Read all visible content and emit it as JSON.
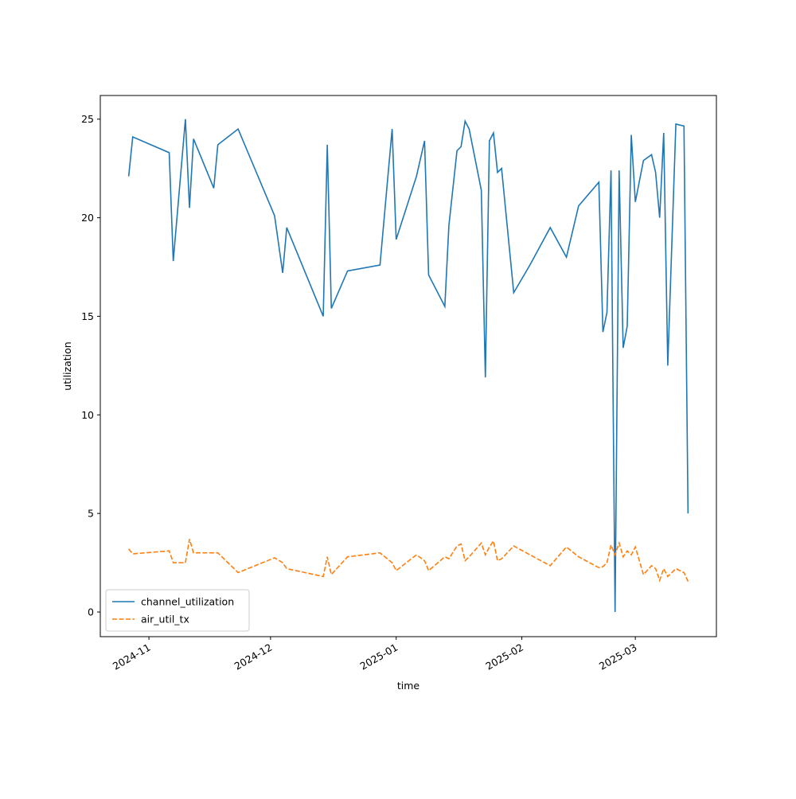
{
  "chart_data": {
    "type": "line",
    "xlabel": "time",
    "ylabel": "utilization",
    "x": [
      "2024-10-27",
      "2024-10-28",
      "2024-11-06",
      "2024-11-07",
      "2024-11-10",
      "2024-11-11",
      "2024-11-12",
      "2024-11-17",
      "2024-11-18",
      "2024-11-23",
      "2024-12-02",
      "2024-12-04",
      "2024-12-05",
      "2024-12-14",
      "2024-12-15",
      "2024-12-16",
      "2024-12-20",
      "2024-12-28",
      "2024-12-31",
      "2025-01-01",
      "2025-01-06",
      "2025-01-08",
      "2025-01-09",
      "2025-01-13",
      "2025-01-14",
      "2025-01-16",
      "2025-01-17",
      "2025-01-18",
      "2025-01-19",
      "2025-01-22",
      "2025-01-23",
      "2025-01-24",
      "2025-01-25",
      "2025-01-26",
      "2025-01-27",
      "2025-01-30",
      "2025-02-03",
      "2025-02-08",
      "2025-02-12",
      "2025-02-15",
      "2025-02-20",
      "2025-02-21",
      "2025-02-22",
      "2025-02-23",
      "2025-02-24",
      "2025-02-25",
      "2025-02-26",
      "2025-02-27",
      "2025-02-28",
      "2025-03-01",
      "2025-03-03",
      "2025-03-05",
      "2025-03-06",
      "2025-03-07",
      "2025-03-08",
      "2025-03-09",
      "2025-03-11",
      "2025-03-13",
      "2025-03-14"
    ],
    "series": [
      {
        "name": "channel_utilization",
        "color": "#1f77b4",
        "linestyle": "solid",
        "values": [
          22.1,
          24.1,
          23.3,
          17.8,
          25.0,
          20.5,
          24.0,
          21.5,
          23.7,
          24.5,
          20.1,
          17.2,
          19.5,
          15.0,
          23.7,
          15.4,
          17.3,
          17.6,
          24.5,
          18.9,
          22.1,
          23.9,
          17.1,
          15.5,
          19.6,
          23.4,
          23.6,
          24.9,
          24.5,
          21.4,
          11.9,
          23.9,
          24.3,
          22.3,
          22.5,
          16.2,
          17.6,
          19.5,
          18.0,
          20.6,
          21.8,
          14.2,
          15.2,
          22.4,
          0,
          22.4,
          13.4,
          14.5,
          24.2,
          20.8,
          22.9,
          23.2,
          22.3,
          20.0,
          24.3,
          12.5,
          24.75,
          24.65,
          5.0
        ]
      },
      {
        "name": "air_util_tx",
        "color": "#ff7f0e",
        "linestyle": "dashed",
        "values": [
          3.2,
          2.95,
          3.1,
          2.5,
          2.5,
          3.7,
          3.0,
          3.0,
          3.0,
          2.0,
          2.75,
          2.5,
          2.2,
          1.8,
          2.8,
          1.9,
          2.8,
          3.0,
          2.5,
          2.1,
          2.9,
          2.6,
          2.1,
          2.8,
          2.7,
          3.35,
          3.45,
          2.6,
          2.8,
          3.5,
          2.9,
          3.3,
          3.6,
          2.6,
          2.7,
          3.35,
          2.9,
          2.35,
          3.3,
          2.8,
          2.25,
          2.3,
          2.5,
          3.4,
          2.9,
          3.5,
          2.8,
          3.1,
          2.9,
          3.3,
          1.9,
          2.35,
          2.2,
          1.6,
          2.2,
          1.8,
          2.2,
          2.0,
          1.55
        ]
      }
    ],
    "xlim": [
      "2024-10-20",
      "2025-03-21"
    ],
    "xticks": [
      {
        "value": "2024-11-01",
        "label": "2024-11"
      },
      {
        "value": "2024-12-01",
        "label": "2024-12"
      },
      {
        "value": "2025-01-01",
        "label": "2025-01"
      },
      {
        "value": "2025-02-01",
        "label": "2025-02"
      },
      {
        "value": "2025-03-01",
        "label": "2025-03"
      }
    ],
    "ylim": [
      -1.25,
      26.2
    ],
    "yticks": [
      0,
      5,
      10,
      15,
      20,
      25
    ],
    "grid": false,
    "legend": "lower left"
  }
}
